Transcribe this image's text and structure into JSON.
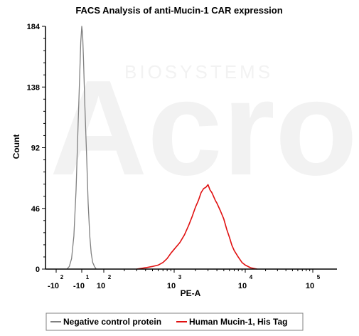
{
  "watermark": {
    "top_text": "BIOSYSTEMS",
    "logo_text": "Acro"
  },
  "chart_data": {
    "type": "line",
    "title": "FACS Analysis of anti-Mucin-1 CAR expression",
    "xlabel": "PE-A",
    "ylabel": "Count",
    "x_scale": "biexponential",
    "ylim": [
      0,
      184
    ],
    "y_ticks": [
      0,
      46,
      92,
      138,
      184
    ],
    "y_tick_labels": [
      "0",
      "46",
      "92",
      "138",
      "184"
    ],
    "x_ticks": [
      {
        "value": -100,
        "label": "-10",
        "sup": "2"
      },
      {
        "value": 0,
        "label": "-10",
        "sup": "1"
      },
      {
        "value": 100,
        "label": "10",
        "sup": "2"
      },
      {
        "value": 1000,
        "label": "10",
        "sup": "3"
      },
      {
        "value": 10000,
        "label": "10",
        "sup": "4"
      },
      {
        "value": 100000,
        "label": "10",
        "sup": "5"
      }
    ],
    "grid": false,
    "legend_position": "bottom",
    "series": [
      {
        "name": "Negative control protein",
        "color": "#808080",
        "points": [
          [
            -30,
            0
          ],
          [
            -22,
            2
          ],
          [
            -16,
            8
          ],
          [
            -11,
            25
          ],
          [
            -7,
            60
          ],
          [
            -4,
            110
          ],
          [
            -2,
            150
          ],
          [
            -1,
            172
          ],
          [
            0,
            184
          ],
          [
            1,
            178
          ],
          [
            2,
            160
          ],
          [
            4,
            125
          ],
          [
            7,
            85
          ],
          [
            10,
            50
          ],
          [
            14,
            25
          ],
          [
            18,
            12
          ],
          [
            23,
            5
          ],
          [
            30,
            2
          ],
          [
            38,
            0
          ]
        ]
      },
      {
        "name": "Human Mucin-1, His Tag",
        "color": "#e01010",
        "points": [
          [
            300,
            0
          ],
          [
            400,
            1
          ],
          [
            500,
            2
          ],
          [
            600,
            3
          ],
          [
            700,
            5
          ],
          [
            800,
            8
          ],
          [
            900,
            12
          ],
          [
            1000,
            15
          ],
          [
            1200,
            20
          ],
          [
            1400,
            26
          ],
          [
            1600,
            33
          ],
          [
            1800,
            40
          ],
          [
            2000,
            47
          ],
          [
            2200,
            52
          ],
          [
            2400,
            58
          ],
          [
            2600,
            61
          ],
          [
            2800,
            62
          ],
          [
            3000,
            64
          ],
          [
            3200,
            60
          ],
          [
            3400,
            58
          ],
          [
            3600,
            55
          ],
          [
            3800,
            52
          ],
          [
            4000,
            50
          ],
          [
            4500,
            44
          ],
          [
            5000,
            38
          ],
          [
            5500,
            30
          ],
          [
            6000,
            24
          ],
          [
            6500,
            18
          ],
          [
            7000,
            14
          ],
          [
            8000,
            9
          ],
          [
            9000,
            5
          ],
          [
            10000,
            3
          ],
          [
            12000,
            1
          ],
          [
            15000,
            0
          ]
        ]
      }
    ]
  }
}
